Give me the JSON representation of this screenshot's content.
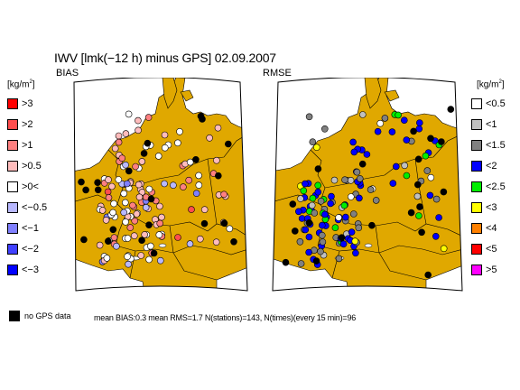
{
  "title": "IWV [lmk(−12 h) minus GPS] 02.09.2007",
  "panels": {
    "left": {
      "label": "BIAS"
    },
    "right": {
      "label": "RMSE"
    }
  },
  "unit": {
    "base": "[kg/m",
    "exp": "2",
    "close": "]"
  },
  "legend_left": [
    {
      "label": ">3",
      "color": "#ff0000"
    },
    {
      "label": ">2",
      "color": "#ff4d4d"
    },
    {
      "label": ">1",
      "color": "#ff8080"
    },
    {
      "label": ">0.5",
      "color": "#ffbcbc"
    },
    {
      "label": ">0<",
      "color": "#ffffff"
    },
    {
      "label": "<−0.5",
      "color": "#b8b8ff"
    },
    {
      "label": "<−1",
      "color": "#8080ff"
    },
    {
      "label": "<−2",
      "color": "#4040ff"
    },
    {
      "label": "<−3",
      "color": "#0000ff"
    }
  ],
  "legend_right": [
    {
      "label": "<0.5",
      "color": "#ffffff"
    },
    {
      "label": "<1",
      "color": "#c0c0c0"
    },
    {
      "label": "<1.5",
      "color": "#808080"
    },
    {
      "label": "<2",
      "color": "#0000ff"
    },
    {
      "label": "<2.5",
      "color": "#00ee00"
    },
    {
      "label": "<3",
      "color": "#ffff00"
    },
    {
      "label": "<4",
      "color": "#ff8000"
    },
    {
      "label": "<5",
      "color": "#ff0000"
    },
    {
      "label": ">5",
      "color": "#ff00ff"
    }
  ],
  "no_gps_label": "no GPS data",
  "stats": "mean BIAS:0.3  mean RMS=1.7  N(stations)=143, N(times)(every 15 min)=96",
  "colors": {
    "land": "#e0a800",
    "sea": "#ffffff",
    "border": "#000000",
    "no_data": "#000000"
  }
}
